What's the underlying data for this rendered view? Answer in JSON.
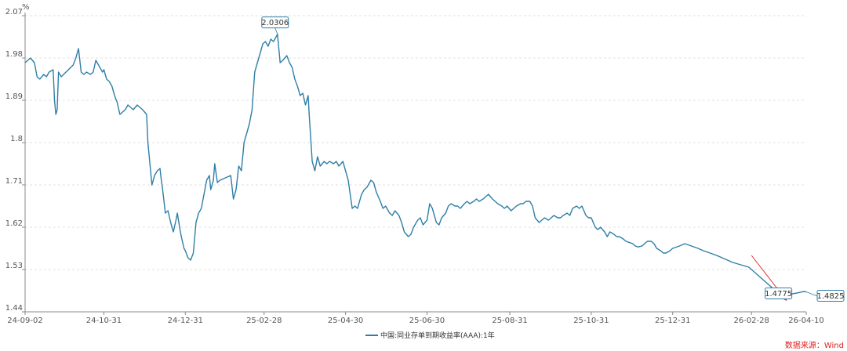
{
  "chart_data": {
    "type": "line",
    "unit_label": "%",
    "series": [
      {
        "name": "中国:同业存单到期收益率(AAA):1年",
        "color": "#2e7fa6",
        "points": [
          [
            "2024-09-02",
            1.97
          ],
          [
            "2024-09-04",
            1.975
          ],
          [
            "2024-09-06",
            1.98
          ],
          [
            "2024-09-09",
            1.97
          ],
          [
            "2024-09-11",
            1.94
          ],
          [
            "2024-09-13",
            1.935
          ],
          [
            "2024-09-16",
            1.945
          ],
          [
            "2024-09-18",
            1.94
          ],
          [
            "2024-09-20",
            1.95
          ],
          [
            "2024-09-23",
            1.955
          ],
          [
            "2024-09-24",
            1.89
          ],
          [
            "2024-09-25",
            1.86
          ],
          [
            "2024-09-26",
            1.87
          ],
          [
            "2024-09-27",
            1.95
          ],
          [
            "2024-09-29",
            1.94
          ],
          [
            "2024-10-08",
            1.965
          ],
          [
            "2024-10-10",
            1.98
          ],
          [
            "2024-10-12",
            2.0
          ],
          [
            "2024-10-14",
            1.95
          ],
          [
            "2024-10-16",
            1.945
          ],
          [
            "2024-10-18",
            1.95
          ],
          [
            "2024-10-21",
            1.945
          ],
          [
            "2024-10-23",
            1.95
          ],
          [
            "2024-10-25",
            1.975
          ],
          [
            "2024-10-28",
            1.96
          ],
          [
            "2024-10-30",
            1.95
          ],
          [
            "2024-10-31",
            1.955
          ],
          [
            "2024-11-02",
            1.935
          ],
          [
            "2024-11-04",
            1.93
          ],
          [
            "2024-11-06",
            1.92
          ],
          [
            "2024-11-08",
            1.9
          ],
          [
            "2024-11-10",
            1.885
          ],
          [
            "2024-11-12",
            1.86
          ],
          [
            "2024-11-14",
            1.865
          ],
          [
            "2024-11-16",
            1.87
          ],
          [
            "2024-11-18",
            1.88
          ],
          [
            "2024-11-20",
            1.875
          ],
          [
            "2024-11-22",
            1.87
          ],
          [
            "2024-11-25",
            1.88
          ],
          [
            "2024-11-27",
            1.875
          ],
          [
            "2024-11-29",
            1.87
          ],
          [
            "2024-12-02",
            1.86
          ],
          [
            "2024-12-03",
            1.8
          ],
          [
            "2024-12-05",
            1.74
          ],
          [
            "2024-12-06",
            1.71
          ],
          [
            "2024-12-08",
            1.73
          ],
          [
            "2024-12-10",
            1.74
          ],
          [
            "2024-12-12",
            1.745
          ],
          [
            "2024-12-13",
            1.72
          ],
          [
            "2024-12-14",
            1.7
          ],
          [
            "2024-12-16",
            1.65
          ],
          [
            "2024-12-18",
            1.655
          ],
          [
            "2024-12-20",
            1.63
          ],
          [
            "2024-12-22",
            1.61
          ],
          [
            "2024-12-24",
            1.635
          ],
          [
            "2024-12-25",
            1.65
          ],
          [
            "2024-12-27",
            1.615
          ],
          [
            "2024-12-28",
            1.6
          ],
          [
            "2024-12-30",
            1.575
          ],
          [
            "2024-12-31",
            1.57
          ],
          [
            "2025-01-02",
            1.555
          ],
          [
            "2025-01-04",
            1.55
          ],
          [
            "2025-01-06",
            1.565
          ],
          [
            "2025-01-08",
            1.63
          ],
          [
            "2025-01-10",
            1.65
          ],
          [
            "2025-01-12",
            1.66
          ],
          [
            "2025-01-14",
            1.69
          ],
          [
            "2025-01-16",
            1.72
          ],
          [
            "2025-01-18",
            1.73
          ],
          [
            "2025-01-19",
            1.7
          ],
          [
            "2025-01-21",
            1.72
          ],
          [
            "2025-01-22",
            1.755
          ],
          [
            "2025-01-24",
            1.715
          ],
          [
            "2025-01-26",
            1.72
          ],
          [
            "2025-02-03",
            1.73
          ],
          [
            "2025-02-05",
            1.68
          ],
          [
            "2025-02-07",
            1.7
          ],
          [
            "2025-02-09",
            1.75
          ],
          [
            "2025-02-11",
            1.74
          ],
          [
            "2025-02-13",
            1.8
          ],
          [
            "2025-02-15",
            1.82
          ],
          [
            "2025-02-17",
            1.84
          ],
          [
            "2025-02-19",
            1.87
          ],
          [
            "2025-02-20",
            1.91
          ],
          [
            "2025-02-21",
            1.95
          ],
          [
            "2025-02-23",
            1.97
          ],
          [
            "2025-02-25",
            1.99
          ],
          [
            "2025-02-27",
            2.01
          ],
          [
            "2025-03-01",
            2.015
          ],
          [
            "2025-03-03",
            2.005
          ],
          [
            "2025-03-05",
            2.02
          ],
          [
            "2025-03-07",
            2.015
          ],
          [
            "2025-03-09",
            2.025
          ],
          [
            "2025-03-10",
            2.0306
          ],
          [
            "2025-03-12",
            1.97
          ],
          [
            "2025-03-14",
            1.975
          ],
          [
            "2025-03-17",
            1.985
          ],
          [
            "2025-03-19",
            1.97
          ],
          [
            "2025-03-21",
            1.96
          ],
          [
            "2025-03-23",
            1.935
          ],
          [
            "2025-03-25",
            1.92
          ],
          [
            "2025-03-27",
            1.9
          ],
          [
            "2025-03-29",
            1.905
          ],
          [
            "2025-03-31",
            1.88
          ],
          [
            "2025-04-02",
            1.9
          ],
          [
            "2025-04-03",
            1.85
          ],
          [
            "2025-04-05",
            1.76
          ],
          [
            "2025-04-07",
            1.74
          ],
          [
            "2025-04-09",
            1.77
          ],
          [
            "2025-04-11",
            1.75
          ],
          [
            "2025-04-14",
            1.76
          ],
          [
            "2025-04-16",
            1.755
          ],
          [
            "2025-04-18",
            1.76
          ],
          [
            "2025-04-21",
            1.755
          ],
          [
            "2025-04-23",
            1.76
          ],
          [
            "2025-04-25",
            1.75
          ],
          [
            "2025-04-28",
            1.76
          ],
          [
            "2025-04-30",
            1.74
          ],
          [
            "2025-05-02",
            1.72
          ],
          [
            "2025-05-05",
            1.66
          ],
          [
            "2025-05-07",
            1.665
          ],
          [
            "2025-05-09",
            1.66
          ],
          [
            "2025-05-12",
            1.69
          ],
          [
            "2025-05-14",
            1.7
          ],
          [
            "2025-05-16",
            1.705
          ],
          [
            "2025-05-19",
            1.72
          ],
          [
            "2025-05-21",
            1.715
          ],
          [
            "2025-05-23",
            1.695
          ],
          [
            "2025-05-26",
            1.675
          ],
          [
            "2025-05-28",
            1.66
          ],
          [
            "2025-05-30",
            1.665
          ],
          [
            "2025-06-02",
            1.65
          ],
          [
            "2025-06-04",
            1.645
          ],
          [
            "2025-06-06",
            1.655
          ],
          [
            "2025-06-09",
            1.645
          ],
          [
            "2025-06-11",
            1.63
          ],
          [
            "2025-06-13",
            1.61
          ],
          [
            "2025-06-16",
            1.6
          ],
          [
            "2025-06-18",
            1.605
          ],
          [
            "2025-06-20",
            1.62
          ],
          [
            "2025-06-23",
            1.635
          ],
          [
            "2025-06-25",
            1.64
          ],
          [
            "2025-06-27",
            1.625
          ],
          [
            "2025-06-30",
            1.635
          ],
          [
            "2025-07-02",
            1.67
          ],
          [
            "2025-07-04",
            1.66
          ],
          [
            "2025-07-07",
            1.63
          ],
          [
            "2025-07-09",
            1.625
          ],
          [
            "2025-07-11",
            1.64
          ],
          [
            "2025-07-14",
            1.65
          ],
          [
            "2025-07-16",
            1.665
          ],
          [
            "2025-07-18",
            1.67
          ],
          [
            "2025-07-21",
            1.665
          ],
          [
            "2025-07-23",
            1.665
          ],
          [
            "2025-07-25",
            1.66
          ],
          [
            "2025-07-28",
            1.67
          ],
          [
            "2025-07-30",
            1.675
          ],
          [
            "2025-08-01",
            1.67
          ],
          [
            "2025-08-04",
            1.675
          ],
          [
            "2025-08-06",
            1.68
          ],
          [
            "2025-08-08",
            1.675
          ],
          [
            "2025-08-11",
            1.68
          ],
          [
            "2025-08-13",
            1.685
          ],
          [
            "2025-08-15",
            1.69
          ],
          [
            "2025-08-18",
            1.68
          ],
          [
            "2025-08-20",
            1.675
          ],
          [
            "2025-08-22",
            1.67
          ],
          [
            "2025-08-25",
            1.665
          ],
          [
            "2025-08-27",
            1.66
          ],
          [
            "2025-08-29",
            1.665
          ],
          [
            "2025-09-01",
            1.655
          ],
          [
            "2025-09-03",
            1.66
          ],
          [
            "2025-09-05",
            1.665
          ],
          [
            "2025-09-08",
            1.67
          ],
          [
            "2025-09-10",
            1.67
          ],
          [
            "2025-09-12",
            1.675
          ],
          [
            "2025-09-15",
            1.675
          ],
          [
            "2025-09-17",
            1.665
          ],
          [
            "2025-09-19",
            1.64
          ],
          [
            "2025-09-22",
            1.63
          ],
          [
            "2025-09-24",
            1.635
          ],
          [
            "2025-09-26",
            1.64
          ],
          [
            "2025-09-29",
            1.635
          ],
          [
            "2025-10-01",
            1.64
          ],
          [
            "2025-10-03",
            1.645
          ],
          [
            "2025-10-06",
            1.64
          ],
          [
            "2025-10-08",
            1.64
          ],
          [
            "2025-10-10",
            1.645
          ],
          [
            "2025-10-13",
            1.65
          ],
          [
            "2025-10-15",
            1.645
          ],
          [
            "2025-10-17",
            1.66
          ],
          [
            "2025-10-20",
            1.665
          ],
          [
            "2025-10-22",
            1.66
          ],
          [
            "2025-10-24",
            1.665
          ],
          [
            "2025-10-27",
            1.645
          ],
          [
            "2025-10-29",
            1.64
          ],
          [
            "2025-10-31",
            1.64
          ],
          [
            "2025-11-03",
            1.62
          ],
          [
            "2025-11-05",
            1.615
          ],
          [
            "2025-11-07",
            1.62
          ],
          [
            "2025-11-10",
            1.61
          ],
          [
            "2025-11-12",
            1.6
          ],
          [
            "2025-11-14",
            1.61
          ],
          [
            "2025-11-17",
            1.605
          ],
          [
            "2025-11-19",
            1.6
          ],
          [
            "2025-11-21",
            1.6
          ],
          [
            "2025-11-24",
            1.595
          ],
          [
            "2025-11-26",
            1.59
          ],
          [
            "2025-11-28",
            1.588
          ],
          [
            "2025-12-01",
            1.585
          ],
          [
            "2025-12-03",
            1.58
          ],
          [
            "2025-12-05",
            1.578
          ],
          [
            "2025-12-08",
            1.58
          ],
          [
            "2025-12-10",
            1.585
          ],
          [
            "2025-12-12",
            1.59
          ],
          [
            "2025-12-15",
            1.59
          ],
          [
            "2025-12-17",
            1.585
          ],
          [
            "2025-12-19",
            1.575
          ],
          [
            "2025-12-22",
            1.57
          ],
          [
            "2025-12-24",
            1.565
          ],
          [
            "2025-12-26",
            1.565
          ],
          [
            "2025-12-29",
            1.57
          ],
          [
            "2025-12-31",
            1.575
          ],
          [
            "2026-01-05",
            1.58
          ],
          [
            "2026-01-09",
            1.585
          ],
          [
            "2026-01-14",
            1.58
          ],
          [
            "2026-01-19",
            1.575
          ],
          [
            "2026-01-23",
            1.57
          ],
          [
            "2026-01-28",
            1.565
          ],
          [
            "2026-02-02",
            1.56
          ],
          [
            "2026-02-06",
            1.555
          ],
          [
            "2026-02-10",
            1.55
          ],
          [
            "2026-02-14",
            1.545
          ],
          [
            "2026-02-20",
            1.54
          ],
          [
            "2026-02-26",
            1.535
          ],
          [
            "2026-03-02",
            1.525
          ],
          [
            "2026-03-06",
            1.515
          ],
          [
            "2026-03-10",
            1.505
          ],
          [
            "2026-03-14",
            1.495
          ],
          [
            "2026-03-18",
            1.485
          ],
          [
            "2026-03-22",
            1.4775
          ],
          [
            "2026-03-26",
            1.48
          ],
          [
            "2026-03-30",
            1.478
          ],
          [
            "2026-04-03",
            1.48
          ],
          [
            "2026-04-08",
            1.483
          ],
          [
            "2026-04-10",
            1.4825
          ]
        ]
      }
    ],
    "x_ticks": [
      "24-09-02",
      "24-10-31",
      "24-12-31",
      "25-02-28",
      "25-04-30",
      "25-06-30",
      "25-08-31",
      "25-10-31",
      "25-12-31",
      "26-02-28",
      "26-04-10"
    ],
    "x_tick_dates": [
      "2024-09-02",
      "2024-10-31",
      "2024-12-31",
      "2025-02-28",
      "2025-04-30",
      "2025-06-30",
      "2025-08-31",
      "2025-10-31",
      "2025-12-31",
      "2026-02-28",
      "2026-04-10"
    ],
    "y_ticks": [
      "2.07",
      "1.98",
      "1.89",
      "1.8",
      "1.71",
      "1.62",
      "1.53",
      "1.44"
    ],
    "ylim": [
      1.44,
      2.07
    ],
    "xlim": [
      "2024-09-02",
      "2026-04-10"
    ],
    "grid": "horizontal-dashed",
    "legend_position": "bottom-center",
    "annotations": [
      {
        "label": "2.0306",
        "date": "2025-03-10",
        "value": 2.0306
      },
      {
        "label": "1.4775",
        "date": "2026-03-22",
        "value": 1.4775
      },
      {
        "label": "1.4825",
        "date": "2026-04-10",
        "value": 1.4825
      }
    ],
    "trend_arrow": {
      "from": [
        "2026-02-28",
        1.56
      ],
      "to": [
        "2026-03-26",
        1.465
      ],
      "color": "#e03030"
    }
  },
  "source": {
    "text": "数据来源：Wind",
    "color": "#e02020"
  }
}
